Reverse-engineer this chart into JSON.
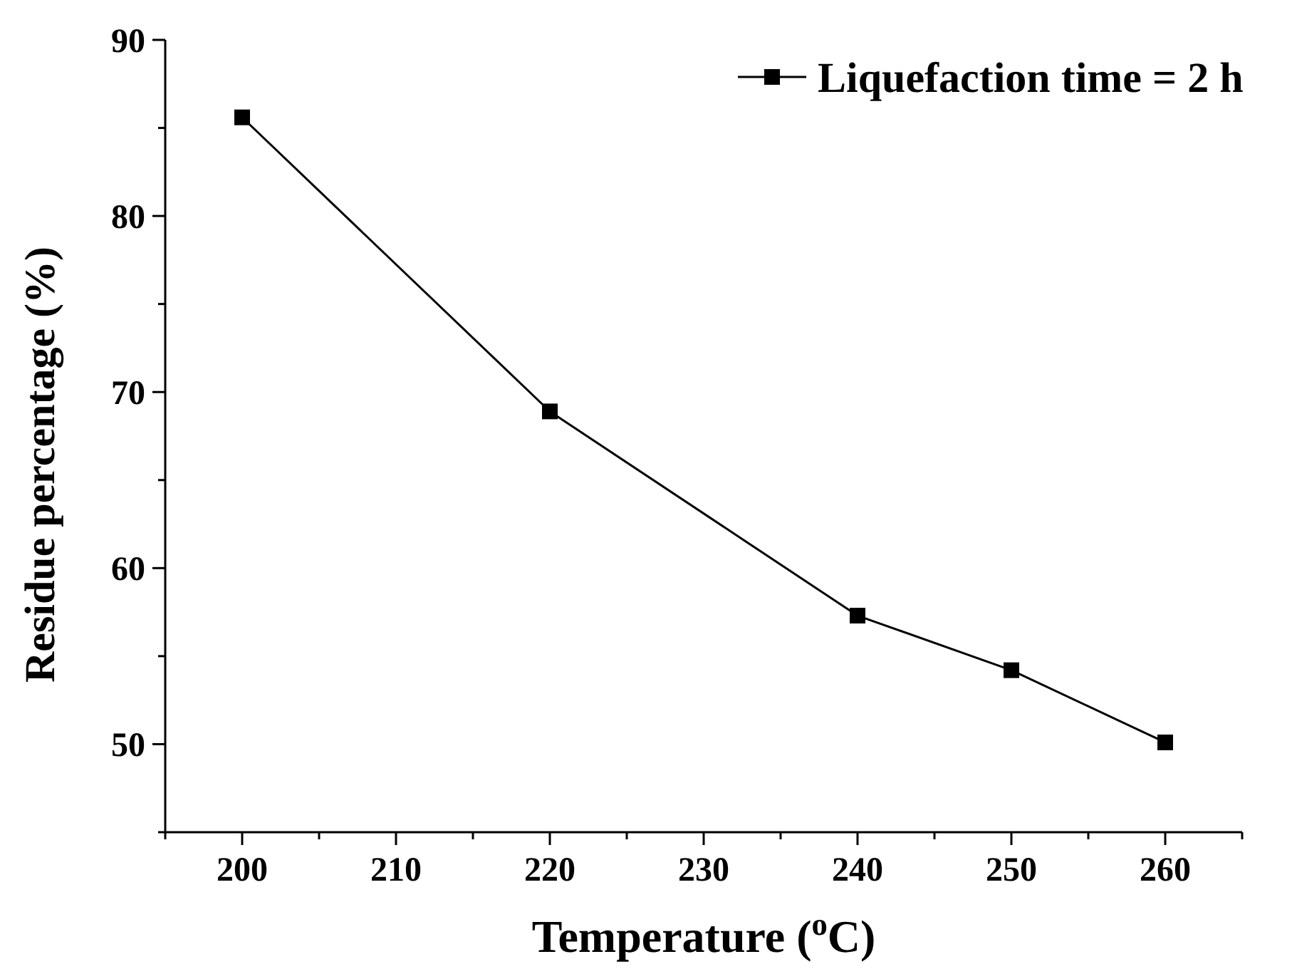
{
  "chart_data": {
    "type": "line",
    "xlabel": "Temperature ($^{o}$C)",
    "ylabel": "Residue percentage (%)",
    "x": [
      200,
      220,
      240,
      250,
      260
    ],
    "series": [
      {
        "name": "Liquefaction time = 2 h",
        "color": "#000000",
        "values": [
          85.6,
          68.9,
          57.3,
          54.2,
          50.1
        ]
      }
    ],
    "xlim": [
      195,
      265
    ],
    "xticks": [
      {
        "value": 195,
        "label": null
      },
      200,
      {
        "value": 205,
        "label": null
      },
      210,
      {
        "value": 215,
        "label": null
      },
      220,
      {
        "value": 225,
        "label": null
      },
      230,
      {
        "value": 235,
        "label": null
      },
      240,
      {
        "value": 245,
        "label": null
      },
      250,
      {
        "value": 255,
        "label": null
      },
      260,
      {
        "value": 265,
        "label": null
      }
    ],
    "ylim": [
      45,
      90
    ],
    "yticks": [
      {
        "value": 45,
        "label": null
      },
      50,
      {
        "value": 55,
        "label": null
      },
      60,
      {
        "value": 65,
        "label": null
      },
      70,
      {
        "value": 75,
        "label": null
      },
      80,
      {
        "value": 85,
        "label": null
      },
      90
    ],
    "marker": "square",
    "line_style": "solid",
    "legend": "top right",
    "grid": false
  }
}
